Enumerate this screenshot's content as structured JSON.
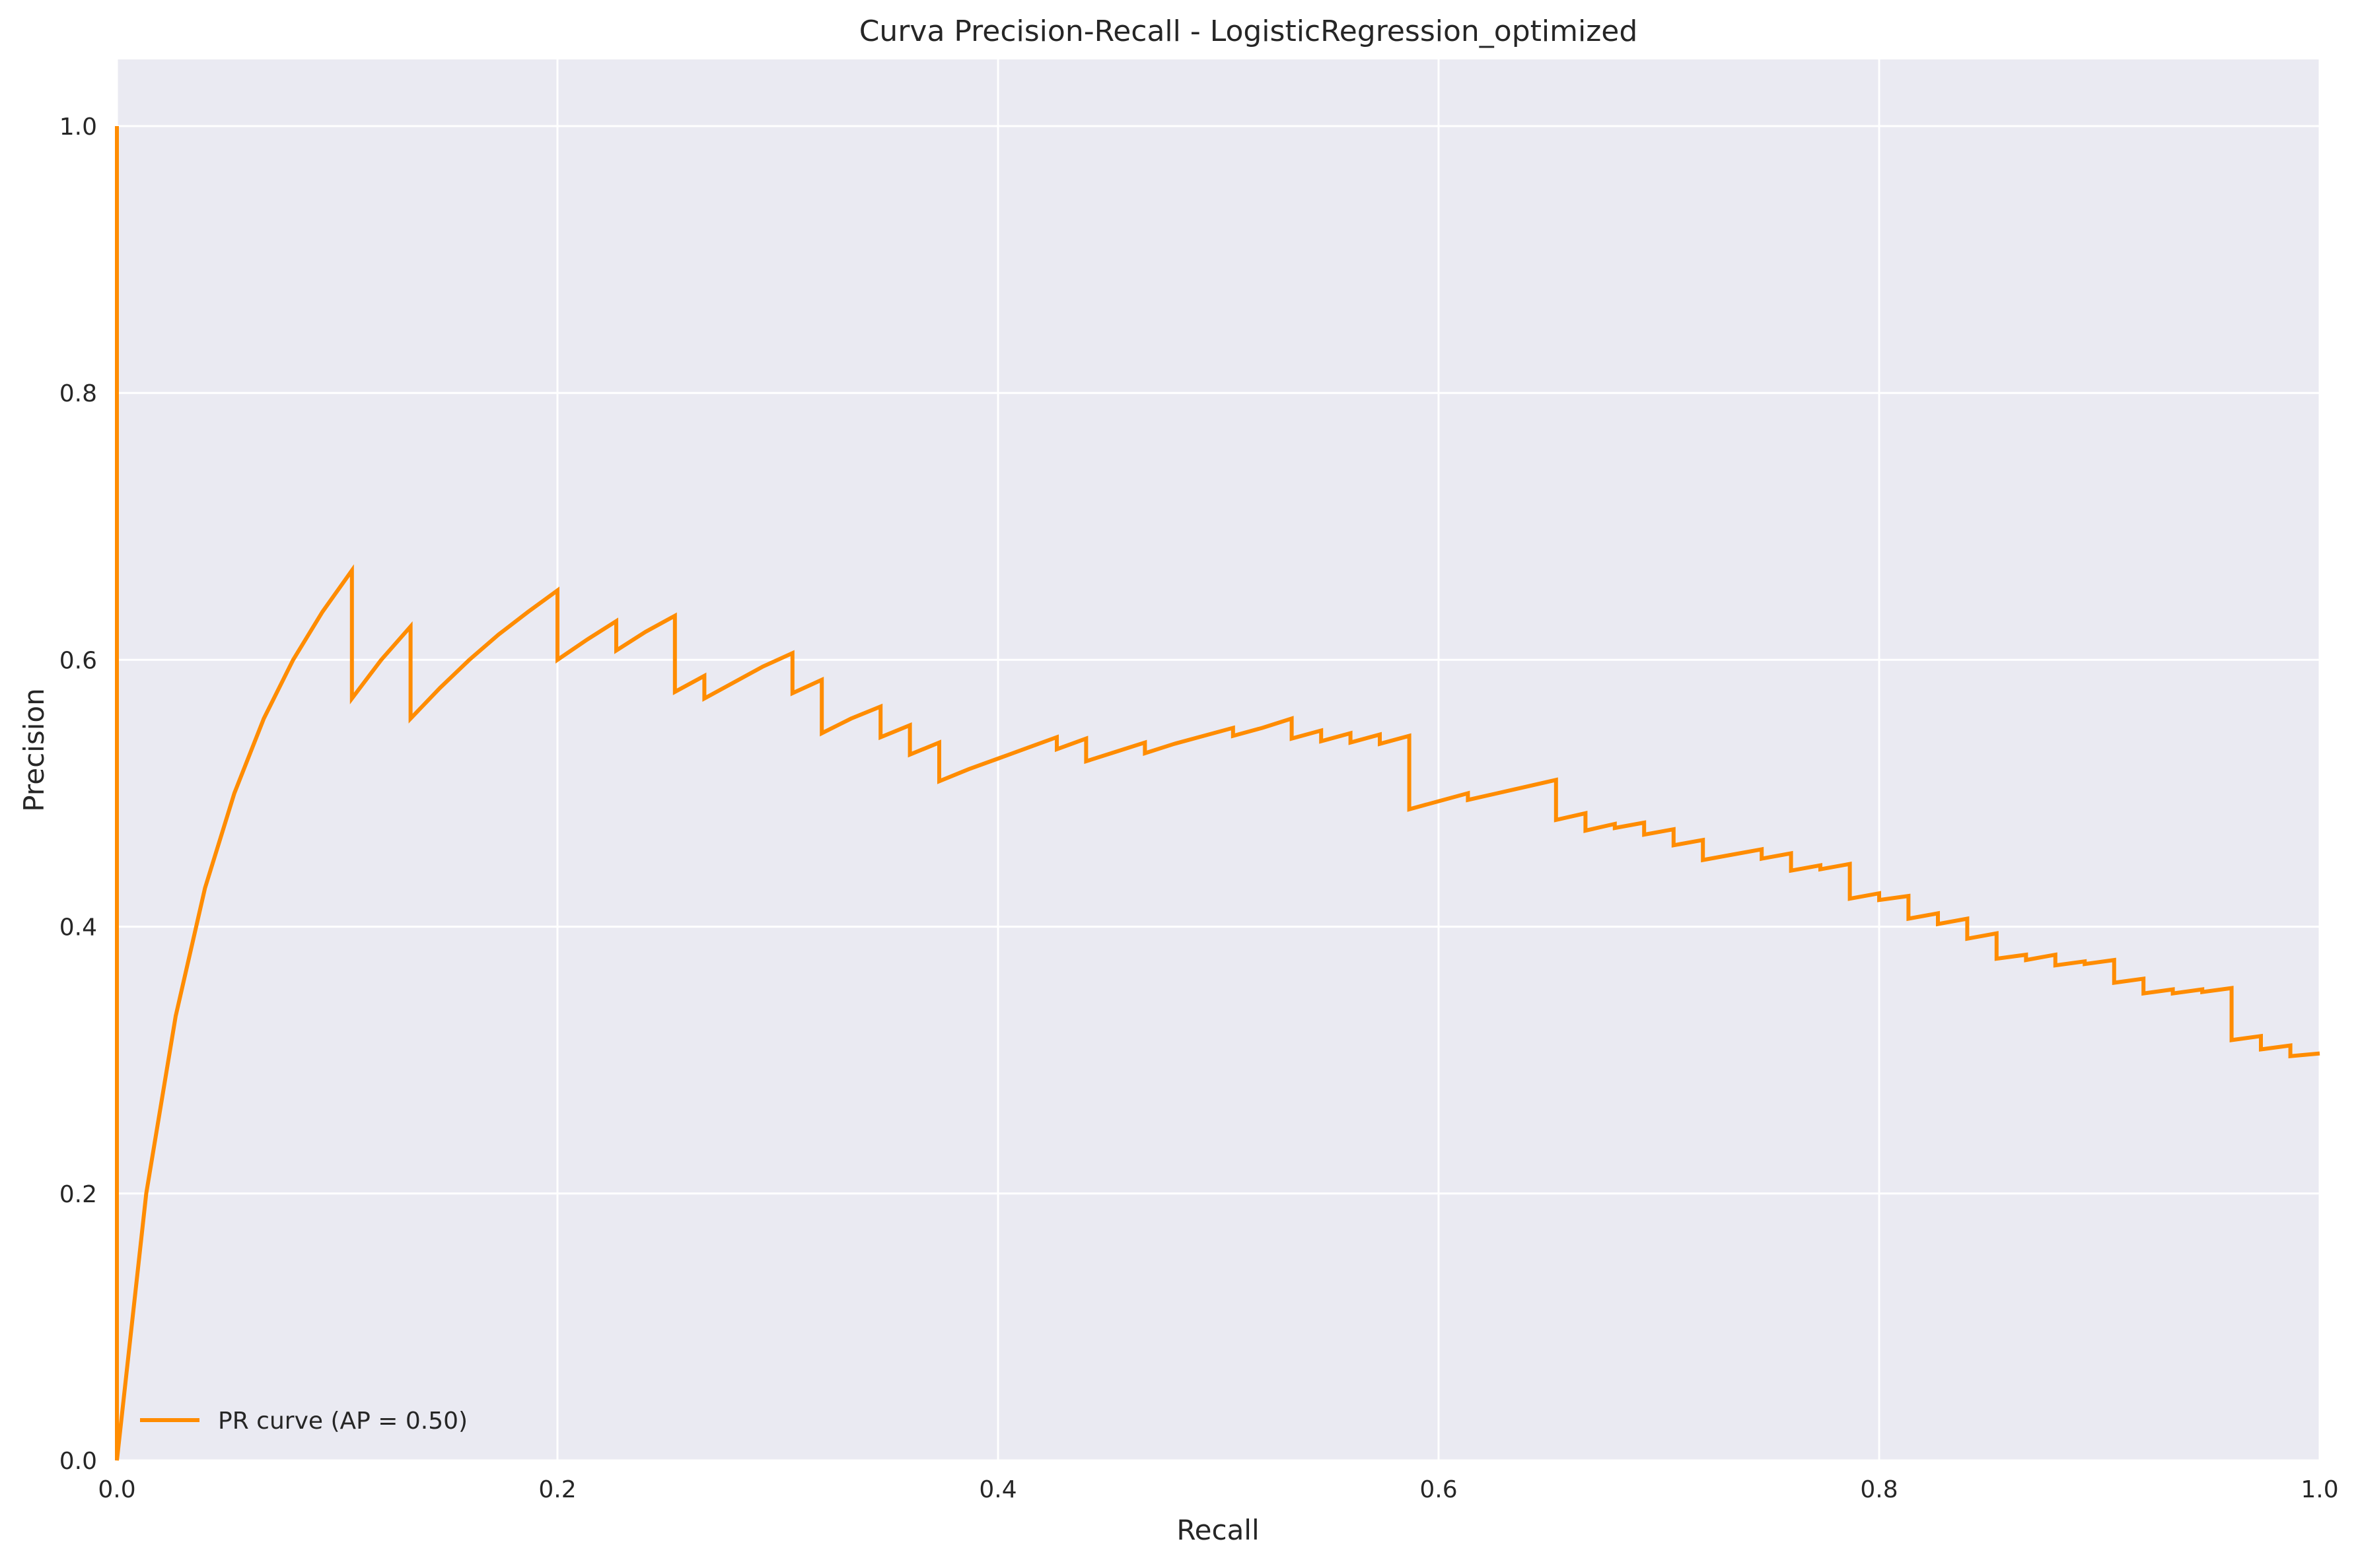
{
  "chart_data": {
    "type": "line",
    "title": "Curva Precision-Recall - LogisticRegression_optimized",
    "xlabel": "Recall",
    "ylabel": "Precision",
    "xlim": [
      0.0,
      1.0
    ],
    "ylim": [
      0.0,
      1.05
    ],
    "xticks": [
      "0.0",
      "0.2",
      "0.4",
      "0.6",
      "0.8",
      "1.0"
    ],
    "yticks": [
      "0.0",
      "0.2",
      "0.4",
      "0.6",
      "0.8",
      "1.0"
    ],
    "grid": true,
    "legend_position": "lower-left",
    "colors": {
      "background": "#eaeaf2",
      "grid": "#ffffff",
      "line": "#ff8c00"
    },
    "series": [
      {
        "name": "PR curve (AP = 0.50)",
        "x": [
          0.0,
          0.0,
          0.0133,
          0.0267,
          0.04,
          0.0533,
          0.0667,
          0.08,
          0.0933,
          0.1067,
          0.1067,
          0.12,
          0.1333,
          0.1333,
          0.1467,
          0.16,
          0.1733,
          0.1867,
          0.2,
          0.2,
          0.2133,
          0.2267,
          0.2267,
          0.24,
          0.2533,
          0.2533,
          0.2667,
          0.2667,
          0.28,
          0.2933,
          0.3067,
          0.3067,
          0.32,
          0.32,
          0.3333,
          0.3467,
          0.3467,
          0.36,
          0.36,
          0.3733,
          0.3733,
          0.3867,
          0.4,
          0.4133,
          0.4267,
          0.4267,
          0.44,
          0.44,
          0.4533,
          0.4667,
          0.4667,
          0.48,
          0.4933,
          0.5067,
          0.5067,
          0.52,
          0.5333,
          0.5333,
          0.5467,
          0.5467,
          0.56,
          0.56,
          0.5733,
          0.5733,
          0.5867,
          0.5867,
          0.6,
          0.6133,
          0.6133,
          0.6267,
          0.64,
          0.6533,
          0.6533,
          0.6667,
          0.6667,
          0.68,
          0.68,
          0.6933,
          0.6933,
          0.7067,
          0.7067,
          0.72,
          0.72,
          0.7333,
          0.7467,
          0.7467,
          0.76,
          0.76,
          0.7733,
          0.7733,
          0.7867,
          0.7867,
          0.8,
          0.8,
          0.8133,
          0.8133,
          0.8267,
          0.8267,
          0.84,
          0.84,
          0.8533,
          0.8533,
          0.8667,
          0.8667,
          0.88,
          0.88,
          0.8933,
          0.8933,
          0.9067,
          0.9067,
          0.92,
          0.92,
          0.9333,
          0.9333,
          0.9467,
          0.9467,
          0.96,
          0.96,
          0.9733,
          0.9733,
          0.9867,
          0.9867,
          1.0
        ],
        "y": [
          1.0,
          0.0,
          0.2,
          0.333,
          0.429,
          0.5,
          0.556,
          0.6,
          0.636,
          0.667,
          0.571,
          0.6,
          0.625,
          0.556,
          0.579,
          0.6,
          0.619,
          0.636,
          0.652,
          0.6,
          0.615,
          0.629,
          0.607,
          0.621,
          0.633,
          0.576,
          0.588,
          0.571,
          0.583,
          0.595,
          0.605,
          0.575,
          0.585,
          0.545,
          0.556,
          0.565,
          0.542,
          0.551,
          0.529,
          0.538,
          0.509,
          0.518,
          0.526,
          0.534,
          0.542,
          0.533,
          0.541,
          0.524,
          0.531,
          0.538,
          0.53,
          0.537,
          0.543,
          0.549,
          0.543,
          0.549,
          0.556,
          0.541,
          0.547,
          0.539,
          0.545,
          0.538,
          0.544,
          0.537,
          0.543,
          0.488,
          0.494,
          0.5,
          0.495,
          0.5,
          0.505,
          0.51,
          0.48,
          0.485,
          0.472,
          0.477,
          0.474,
          0.478,
          0.469,
          0.473,
          0.461,
          0.465,
          0.45,
          0.454,
          0.458,
          0.451,
          0.455,
          0.442,
          0.446,
          0.443,
          0.447,
          0.421,
          0.425,
          0.42,
          0.423,
          0.406,
          0.41,
          0.402,
          0.406,
          0.391,
          0.395,
          0.376,
          0.379,
          0.375,
          0.379,
          0.371,
          0.374,
          0.372,
          0.375,
          0.358,
          0.361,
          0.35,
          0.353,
          0.35,
          0.353,
          0.351,
          0.354,
          0.315,
          0.318,
          0.308,
          0.311,
          0.303,
          0.305
        ]
      }
    ]
  }
}
